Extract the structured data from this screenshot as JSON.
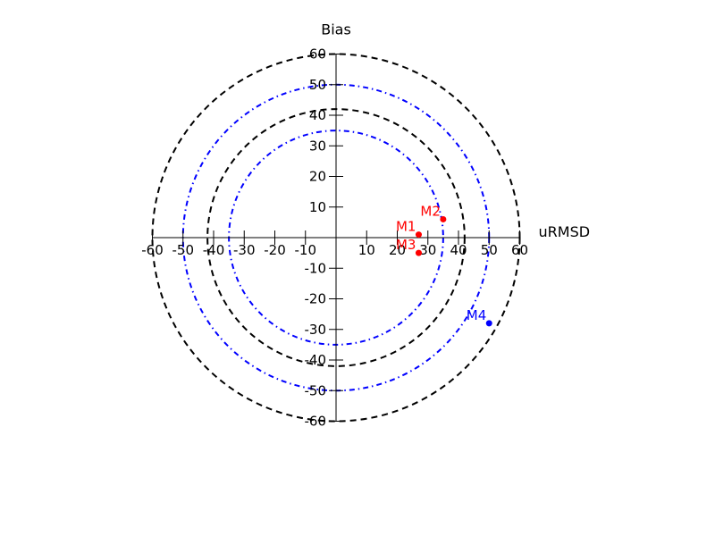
{
  "chart_data": {
    "type": "scatter",
    "title": "",
    "xlabel": "uRMSD",
    "ylabel": "Bias",
    "xlim": [
      -60,
      60
    ],
    "ylim": [
      -60,
      60
    ],
    "x_ticks": [
      -60,
      -50,
      -40,
      -30,
      -20,
      -10,
      10,
      20,
      30,
      40,
      50,
      60
    ],
    "y_ticks": [
      -60,
      -50,
      -40,
      -30,
      -20,
      -10,
      10,
      20,
      30,
      40,
      50,
      60
    ],
    "grid": false,
    "circles": [
      {
        "radius": 60,
        "style": "dashed",
        "color": "#000000"
      },
      {
        "radius": 50,
        "style": "dashdot",
        "color": "#0000ff"
      },
      {
        "radius": 42,
        "style": "dashed",
        "color": "#000000"
      },
      {
        "radius": 35,
        "style": "dashdot",
        "color": "#0000ff"
      }
    ],
    "points": [
      {
        "label": "M1",
        "x": 27,
        "y": 1,
        "color": "#ff0000"
      },
      {
        "label": "M2",
        "x": 35,
        "y": 6,
        "color": "#ff0000"
      },
      {
        "label": "M3",
        "x": 27,
        "y": -5,
        "color": "#ff0000"
      },
      {
        "label": "M4",
        "x": 50,
        "y": -28,
        "color": "#0000ff"
      }
    ]
  }
}
